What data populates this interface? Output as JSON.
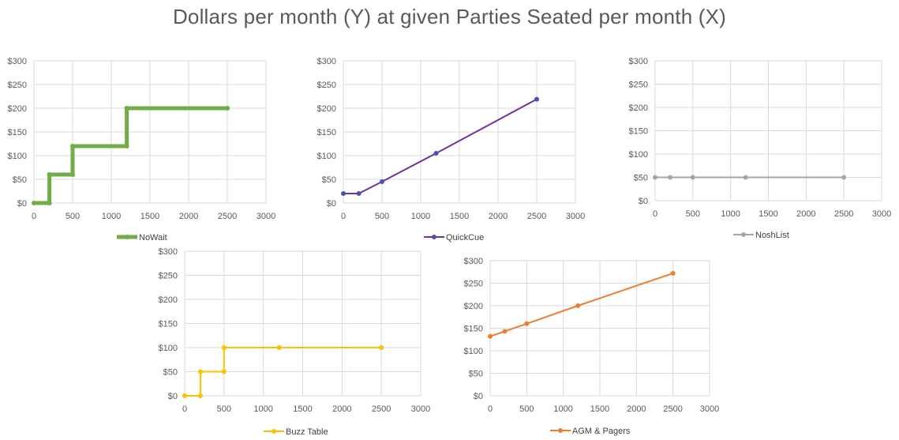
{
  "title": "Dollars per month (Y) at given Parties Seated per month (X)",
  "chart_data": [
    {
      "type": "line",
      "series": [
        {
          "name": "NoWait",
          "color": "#70AD47",
          "step": true,
          "x": [
            0,
            200,
            500,
            1200,
            2500
          ],
          "y": [
            0,
            60,
            120,
            200,
            200
          ]
        }
      ],
      "xlim": [
        0,
        3000
      ],
      "ylim": [
        0,
        300
      ],
      "xticks": [
        0,
        500,
        1000,
        1500,
        2000,
        2500,
        3000
      ],
      "yticks": [
        0,
        50,
        100,
        150,
        200,
        250,
        300
      ],
      "xtick_labels": [
        "0",
        "500",
        "1000",
        "1500",
        "2000",
        "2500",
        "3000"
      ],
      "ytick_labels": [
        "$0",
        "$50",
        "$100",
        "$150",
        "$200",
        "$250",
        "$300"
      ],
      "grid": true,
      "legend": "bottom"
    },
    {
      "type": "line",
      "series": [
        {
          "name": "QuickCue",
          "color": "#7030A0",
          "marker_color": "#4F4FB0",
          "step": false,
          "x": [
            0,
            200,
            500,
            1200,
            2500
          ],
          "y": [
            20,
            20,
            45,
            105,
            219
          ]
        }
      ],
      "xlim": [
        0,
        3000
      ],
      "ylim": [
        0,
        300
      ],
      "xticks": [
        0,
        500,
        1000,
        1500,
        2000,
        2500,
        3000
      ],
      "yticks": [
        0,
        50,
        100,
        150,
        200,
        250,
        300
      ],
      "xtick_labels": [
        "0",
        "500",
        "1000",
        "1500",
        "2000",
        "2500",
        "3000"
      ],
      "ytick_labels": [
        "$0",
        "$50",
        "$100",
        "$150",
        "$200",
        "$250",
        "$300"
      ],
      "grid": true,
      "legend": "bottom"
    },
    {
      "type": "line",
      "series": [
        {
          "name": "NoshList",
          "color": "#A5A5A5",
          "step": false,
          "x": [
            0,
            200,
            500,
            1200,
            2500
          ],
          "y": [
            50,
            50,
            50,
            50,
            50
          ]
        }
      ],
      "xlim": [
        0,
        3000
      ],
      "ylim": [
        0,
        300
      ],
      "xticks": [
        0,
        500,
        1000,
        1500,
        2000,
        2500,
        3000
      ],
      "yticks": [
        0,
        50,
        100,
        150,
        200,
        250,
        300
      ],
      "xtick_labels": [
        "0",
        "500",
        "1000",
        "1500",
        "2000",
        "2500",
        "3000"
      ],
      "ytick_labels": [
        "$0",
        "$50",
        "$100",
        "$150",
        "$200",
        "$250",
        "$300"
      ],
      "grid": true,
      "legend": "bottom"
    },
    {
      "type": "line",
      "series": [
        {
          "name": "Buzz Table",
          "color": "#FFC000",
          "step": true,
          "x": [
            0,
            200,
            500,
            1200,
            2500
          ],
          "y": [
            0,
            50,
            100,
            100,
            100
          ]
        }
      ],
      "xlim": [
        0,
        3000
      ],
      "ylim": [
        0,
        300
      ],
      "xticks": [
        0,
        500,
        1000,
        1500,
        2000,
        2500,
        3000
      ],
      "yticks": [
        0,
        50,
        100,
        150,
        200,
        250,
        300
      ],
      "xtick_labels": [
        "0",
        "500",
        "1000",
        "1500",
        "2000",
        "2500",
        "3000"
      ],
      "ytick_labels": [
        "$0",
        "$50",
        "$100",
        "$150",
        "$200",
        "$250",
        "$300"
      ],
      "grid": true,
      "legend": "bottom"
    },
    {
      "type": "line",
      "series": [
        {
          "name": "AGM & Pagers",
          "color": "#ED7D31",
          "step": false,
          "x": [
            0,
            200,
            500,
            1200,
            2500
          ],
          "y": [
            132,
            143,
            160,
            200,
            272
          ]
        }
      ],
      "xlim": [
        0,
        3000
      ],
      "ylim": [
        0,
        300
      ],
      "xticks": [
        0,
        500,
        1000,
        1500,
        2000,
        2500,
        3000
      ],
      "yticks": [
        0,
        50,
        100,
        150,
        200,
        250,
        300
      ],
      "xtick_labels": [
        "0",
        "500",
        "1000",
        "1500",
        "2000",
        "2500",
        "3000"
      ],
      "ytick_labels": [
        "$0",
        "$50",
        "$100",
        "$150",
        "$200",
        "$250",
        "$300"
      ],
      "grid": true,
      "legend": "bottom"
    }
  ]
}
